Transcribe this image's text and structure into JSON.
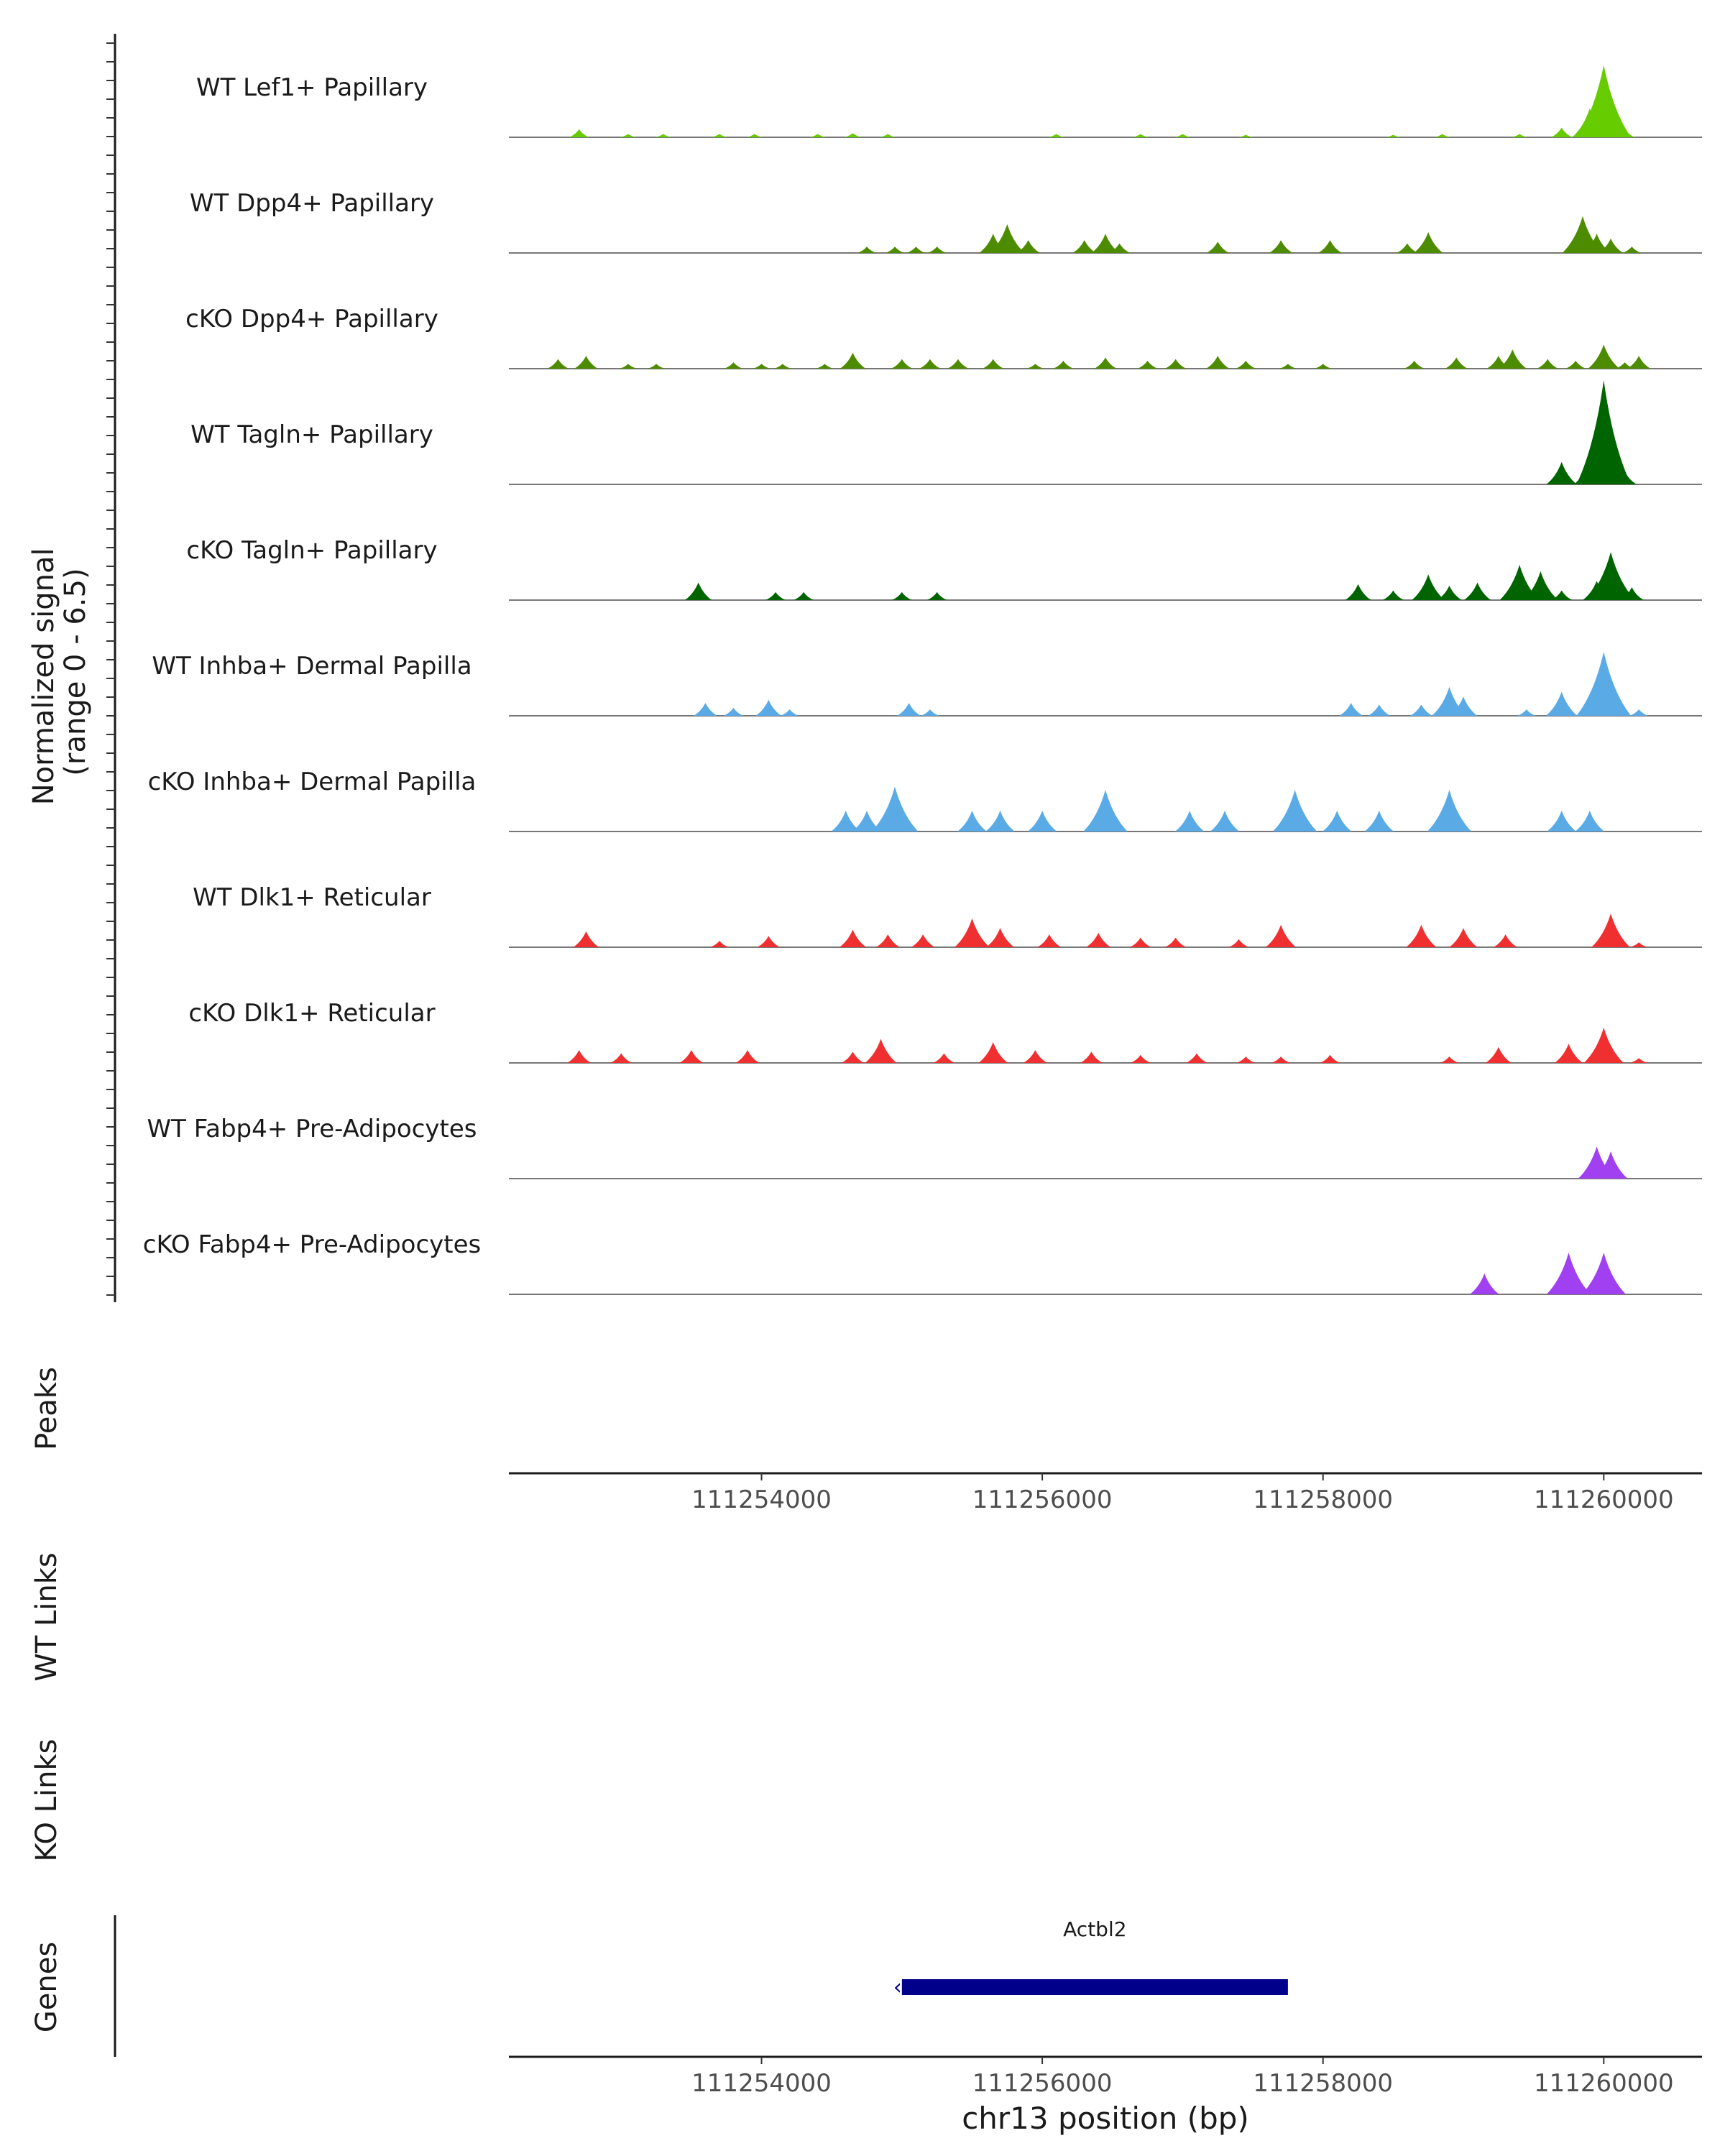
{
  "chart_data": {
    "type": "area",
    "title": "",
    "chromosome": "chr13",
    "xlabel": "chr13 position (bp)",
    "xlim": [
      111252200,
      111260700
    ],
    "xticks": [
      111254000,
      111256000,
      111258000,
      111260000
    ],
    "xtick_labels": [
      "111254000",
      "111256000",
      "111258000",
      "111260000"
    ],
    "ylabel": "Normalized signal\n(range 0 - 6.5)",
    "ylim": [
      0,
      6.5
    ],
    "track_labels": {
      "peaks": "Peaks",
      "wt_links": "WT Links",
      "ko_links": "KO Links",
      "genes": "Genes"
    },
    "genes": [
      {
        "name": "Actbl2",
        "start": 111255000,
        "end": 111257750,
        "strand": "-",
        "color": "#00008b"
      }
    ],
    "series": [
      {
        "name": "WT Lef1+ Papillary",
        "color": "#66cc00",
        "peaks": [
          [
            111252700,
            0.5
          ],
          [
            111253050,
            0.2
          ],
          [
            111253300,
            0.2
          ],
          [
            111253700,
            0.2
          ],
          [
            111253950,
            0.2
          ],
          [
            111254400,
            0.2
          ],
          [
            111254650,
            0.25
          ],
          [
            111254900,
            0.2
          ],
          [
            111256100,
            0.2
          ],
          [
            111256700,
            0.2
          ],
          [
            111257000,
            0.2
          ],
          [
            111257450,
            0.15
          ],
          [
            111258500,
            0.15
          ],
          [
            111258850,
            0.2
          ],
          [
            111259400,
            0.2
          ],
          [
            111259700,
            0.6
          ],
          [
            111259900,
            1.8
          ],
          [
            111260000,
            4.5
          ],
          [
            111260150,
            0.5
          ]
        ]
      },
      {
        "name": "WT Dpp4+ Papillary",
        "color": "#4d8c00",
        "peaks": [
          [
            111254750,
            0.4
          ],
          [
            111254950,
            0.4
          ],
          [
            111255100,
            0.4
          ],
          [
            111255250,
            0.4
          ],
          [
            111255650,
            1.2
          ],
          [
            111255750,
            1.8
          ],
          [
            111255900,
            0.8
          ],
          [
            111256300,
            0.8
          ],
          [
            111256450,
            1.2
          ],
          [
            111256550,
            0.6
          ],
          [
            111257250,
            0.7
          ],
          [
            111257700,
            0.8
          ],
          [
            111258050,
            0.8
          ],
          [
            111258600,
            0.6
          ],
          [
            111258750,
            1.3
          ],
          [
            111259850,
            2.3
          ],
          [
            111259950,
            1.2
          ],
          [
            111260050,
            0.9
          ],
          [
            111260200,
            0.4
          ]
        ]
      },
      {
        "name": "cKO Dpp4+ Papillary",
        "color": "#4d8c00",
        "peaks": [
          [
            111252550,
            0.6
          ],
          [
            111252750,
            0.8
          ],
          [
            111253050,
            0.3
          ],
          [
            111253250,
            0.3
          ],
          [
            111253800,
            0.4
          ],
          [
            111254000,
            0.3
          ],
          [
            111254150,
            0.3
          ],
          [
            111254450,
            0.3
          ],
          [
            111254650,
            1.0
          ],
          [
            111255000,
            0.6
          ],
          [
            111255200,
            0.6
          ],
          [
            111255400,
            0.6
          ],
          [
            111255650,
            0.6
          ],
          [
            111255950,
            0.3
          ],
          [
            111256150,
            0.5
          ],
          [
            111256450,
            0.7
          ],
          [
            111256750,
            0.5
          ],
          [
            111256950,
            0.6
          ],
          [
            111257250,
            0.8
          ],
          [
            111257450,
            0.5
          ],
          [
            111257750,
            0.3
          ],
          [
            111258000,
            0.3
          ],
          [
            111258650,
            0.5
          ],
          [
            111258950,
            0.7
          ],
          [
            111259250,
            0.8
          ],
          [
            111259350,
            1.2
          ],
          [
            111259600,
            0.6
          ],
          [
            111259800,
            0.5
          ],
          [
            111260000,
            1.5
          ],
          [
            111260150,
            0.4
          ],
          [
            111260250,
            0.8
          ]
        ]
      },
      {
        "name": "WT Tagln+ Papillary",
        "color": "#006400",
        "peaks": [
          [
            111259700,
            1.4
          ],
          [
            111259900,
            1.5
          ],
          [
            111260000,
            6.5
          ],
          [
            111260150,
            0.8
          ]
        ]
      },
      {
        "name": "cKO Tagln+ Papillary",
        "color": "#006400",
        "peaks": [
          [
            111253550,
            1.1
          ],
          [
            111254100,
            0.5
          ],
          [
            111254300,
            0.5
          ],
          [
            111255000,
            0.5
          ],
          [
            111255250,
            0.5
          ],
          [
            111258250,
            1.0
          ],
          [
            111258500,
            0.6
          ],
          [
            111258750,
            1.6
          ],
          [
            111258900,
            0.9
          ],
          [
            111259100,
            1.1
          ],
          [
            111259400,
            2.2
          ],
          [
            111259550,
            1.8
          ],
          [
            111259700,
            0.6
          ],
          [
            111259950,
            1.2
          ],
          [
            111260050,
            3.0
          ],
          [
            111260200,
            0.8
          ]
        ]
      },
      {
        "name": "WT Inhba+ Dermal Papilla",
        "color": "#5aaae6",
        "peaks": [
          [
            111253600,
            0.8
          ],
          [
            111253800,
            0.5
          ],
          [
            111254050,
            1.0
          ],
          [
            111254200,
            0.4
          ],
          [
            111255050,
            0.8
          ],
          [
            111255200,
            0.4
          ],
          [
            111258200,
            0.8
          ],
          [
            111258400,
            0.7
          ],
          [
            111258700,
            0.7
          ],
          [
            111258900,
            1.8
          ],
          [
            111259000,
            1.2
          ],
          [
            111259450,
            0.4
          ],
          [
            111259700,
            1.5
          ],
          [
            111260000,
            4.0
          ],
          [
            111260250,
            0.4
          ]
        ]
      },
      {
        "name": "cKO Inhba+ Dermal Papilla",
        "color": "#5aaae6",
        "peaks": [
          [
            111254600,
            1.3
          ],
          [
            111254750,
            1.3
          ],
          [
            111254950,
            2.8
          ],
          [
            111255500,
            1.3
          ],
          [
            111255700,
            1.3
          ],
          [
            111256000,
            1.3
          ],
          [
            111256450,
            2.6
          ],
          [
            111257050,
            1.3
          ],
          [
            111257300,
            1.3
          ],
          [
            111257800,
            2.6
          ],
          [
            111258100,
            1.3
          ],
          [
            111258400,
            1.3
          ],
          [
            111258900,
            2.6
          ],
          [
            111259700,
            1.3
          ],
          [
            111259900,
            1.3
          ]
        ]
      },
      {
        "name": "WT Dlk1+ Reticular",
        "color": "#f03030",
        "peaks": [
          [
            111252750,
            1.0
          ],
          [
            111253700,
            0.4
          ],
          [
            111254050,
            0.7
          ],
          [
            111254650,
            1.1
          ],
          [
            111254900,
            0.8
          ],
          [
            111255150,
            0.8
          ],
          [
            111255500,
            1.8
          ],
          [
            111255700,
            1.2
          ],
          [
            111256050,
            0.8
          ],
          [
            111256400,
            0.9
          ],
          [
            111256700,
            0.6
          ],
          [
            111256950,
            0.6
          ],
          [
            111257400,
            0.5
          ],
          [
            111257700,
            1.4
          ],
          [
            111258700,
            1.4
          ],
          [
            111259000,
            1.2
          ],
          [
            111259300,
            0.8
          ],
          [
            111260050,
            2.1
          ],
          [
            111260250,
            0.3
          ]
        ]
      },
      {
        "name": "cKO Dlk1+ Reticular",
        "color": "#f03030",
        "peaks": [
          [
            111252700,
            0.8
          ],
          [
            111253000,
            0.6
          ],
          [
            111253500,
            0.8
          ],
          [
            111253900,
            0.8
          ],
          [
            111254650,
            0.7
          ],
          [
            111254850,
            1.5
          ],
          [
            111255300,
            0.6
          ],
          [
            111255650,
            1.3
          ],
          [
            111255950,
            0.8
          ],
          [
            111256350,
            0.7
          ],
          [
            111256700,
            0.5
          ],
          [
            111257100,
            0.6
          ],
          [
            111257450,
            0.4
          ],
          [
            111257700,
            0.4
          ],
          [
            111258050,
            0.5
          ],
          [
            111258900,
            0.4
          ],
          [
            111259250,
            1.0
          ],
          [
            111259750,
            1.2
          ],
          [
            111260000,
            2.2
          ],
          [
            111260250,
            0.3
          ]
        ]
      },
      {
        "name": "WT Fabp4+ Pre-Adipocytes",
        "color": "#a040f0",
        "peaks": [
          [
            111259950,
            2.0
          ],
          [
            111260050,
            1.7
          ]
        ]
      },
      {
        "name": "cKO Fabp4+ Pre-Adipocytes",
        "color": "#a040f0",
        "peaks": [
          [
            111259150,
            1.3
          ],
          [
            111259750,
            2.6
          ],
          [
            111260000,
            2.6
          ]
        ]
      }
    ]
  }
}
